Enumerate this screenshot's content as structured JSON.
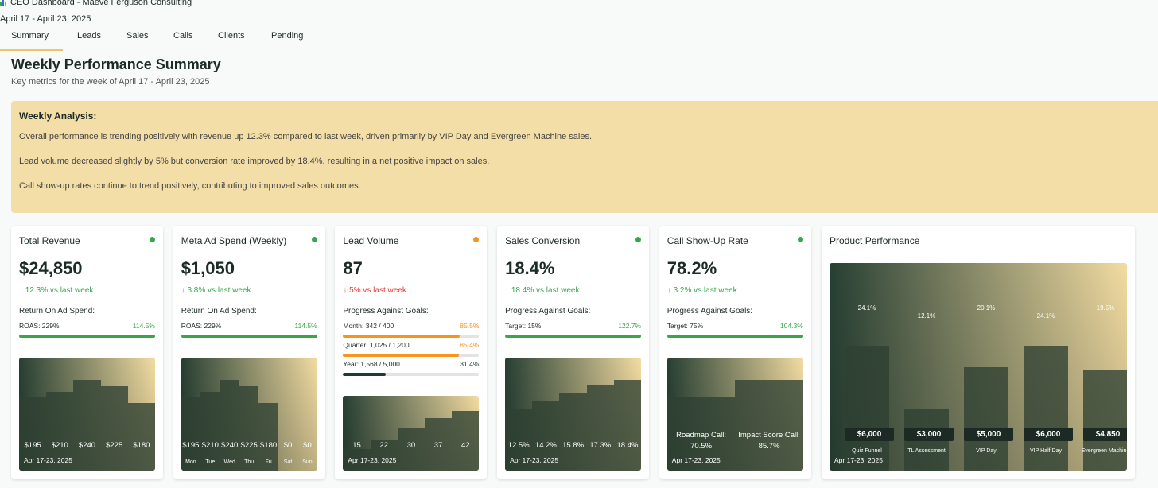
{
  "header": {
    "title": "CEO Dashboard - Maeve Ferguson Consulting",
    "date_range": "April 17 - April 23, 2025"
  },
  "tabs": [
    "Summary",
    "Leads",
    "Sales",
    "Calls",
    "Clients",
    "Pending"
  ],
  "page": {
    "title": "Weekly Performance Summary",
    "subtitle": "Key metrics for the week of April 17 - April 23, 2025"
  },
  "analysis": {
    "heading": "Weekly Analysis:",
    "paragraphs": [
      "Overall performance is trending positively with revenue up 12.3% compared to last week, driven primarily by VIP Day and Evergreen Machine sales.",
      "Lead volume decreased slightly by 5% but conversion rate improved by 18.4%, resulting in a net positive impact on sales.",
      "Call show-up rates continue to trend positively, contributing to improved sales outcomes."
    ]
  },
  "cards": [
    {
      "title": "Total Revenue",
      "status_color": "#3aa64a",
      "value": "$24,850",
      "change": "↑ 12.3% vs last week",
      "change_color": "#3aa64a",
      "section_label": "Return On Ad Spend:",
      "goals": [
        {
          "label": "ROAS: 229%",
          "value": 114.5,
          "value_label": "114.5%",
          "color": "#3aa64a"
        }
      ],
      "chart": {
        "values": [
          195,
          210,
          240,
          225,
          180
        ],
        "value_labels": [
          "$195",
          "$210",
          "$240",
          "$225",
          "$180"
        ],
        "date": "Apr 17-23, 2025"
      }
    },
    {
      "title": "Meta Ad Spend (Weekly)",
      "status_color": "#3aa64a",
      "value": "$1,050",
      "change": "↓ 3.8% vs last week",
      "change_color": "#3aa64a",
      "section_label": "Return On Ad Spend:",
      "goals": [
        {
          "label": "ROAS: 229%",
          "value": 114.5,
          "value_label": "114.5%",
          "color": "#3aa64a"
        }
      ],
      "chart": {
        "values": [
          195,
          210,
          240,
          225,
          180,
          0,
          0
        ],
        "value_labels": [
          "$195",
          "$210",
          "$240",
          "$225",
          "$180",
          "$0",
          "$0"
        ],
        "categories": [
          "Mon",
          "Tue",
          "Wed",
          "Thu",
          "Fri",
          "Sat",
          "Sun"
        ]
      }
    },
    {
      "title": "Lead Volume",
      "status_color": "#f7941d",
      "value": "87",
      "change": "↓ 5% vs last week",
      "change_color": "#e53935",
      "section_label": "Progress Against Goals:",
      "goals": [
        {
          "label": "Month: 342 / 400",
          "value": 85.5,
          "value_label": "85.5%",
          "color": "#f7941d"
        },
        {
          "label": "Quarter: 1,025 / 1,200",
          "value": 85.4,
          "value_label": "85.4%",
          "color": "#f7941d"
        },
        {
          "label": "Year: 1,568 / 5,000",
          "value": 31.4,
          "value_label": "31.4%",
          "color": "#1d3b2f"
        }
      ],
      "chart": {
        "values": [
          15,
          22,
          30,
          37,
          42
        ],
        "date": "Apr 17-23, 2025"
      }
    },
    {
      "title": "Sales Conversion",
      "status_color": "#3aa64a",
      "value": "18.4%",
      "change": "↑ 18.4% vs last week",
      "change_color": "#3aa64a",
      "section_label": "Progress Against Goals:",
      "goals": [
        {
          "label": "Target: 15%",
          "value": 122.7,
          "value_label": "122.7%",
          "color": "#3aa64a"
        }
      ],
      "chart": {
        "values": [
          12.5,
          14.2,
          15.8,
          17.3,
          18.4
        ],
        "value_labels": [
          "12.5%",
          "14.2%",
          "15.8%",
          "17.3%",
          "18.4%"
        ],
        "date": "Apr 17-23, 2025"
      }
    },
    {
      "title": "Call Show-Up Rate",
      "status_color": "#3aa64a",
      "value": "78.2%",
      "change": "↑ 3.2% vs last week",
      "change_color": "#3aa64a",
      "section_label": "Progress Against Goals:",
      "goals": [
        {
          "label": "Target: 75%",
          "value": 104.3,
          "value_label": "104.3%",
          "color": "#3aa64a"
        }
      ],
      "chart": {
        "categories": [
          "Roadmap Call:",
          "Impact Score Call:"
        ],
        "values": [
          70.5,
          85.7
        ],
        "value_labels": [
          "70.5%",
          "85.7%"
        ],
        "date": "Apr 17-23, 2025"
      }
    }
  ],
  "product": {
    "title": "Product Performance",
    "chart": {
      "categories": [
        "Quiz Funnel",
        "TL Assessment",
        "VIP Day",
        "VIP Half Day",
        "Evergreen Machine"
      ],
      "values": [
        6000,
        3000,
        5000,
        6000,
        4850
      ],
      "value_labels": [
        "$6,000",
        "$3,000",
        "$5,000",
        "$6,000",
        "$4,850"
      ],
      "shares": [
        24.1,
        12.1,
        20.1,
        24.1,
        19.5
      ],
      "share_labels": [
        "24.1%",
        "12.1%",
        "20.1%",
        "24.1%",
        "19.5%"
      ],
      "date": "Apr 17-23, 2025"
    }
  }
}
